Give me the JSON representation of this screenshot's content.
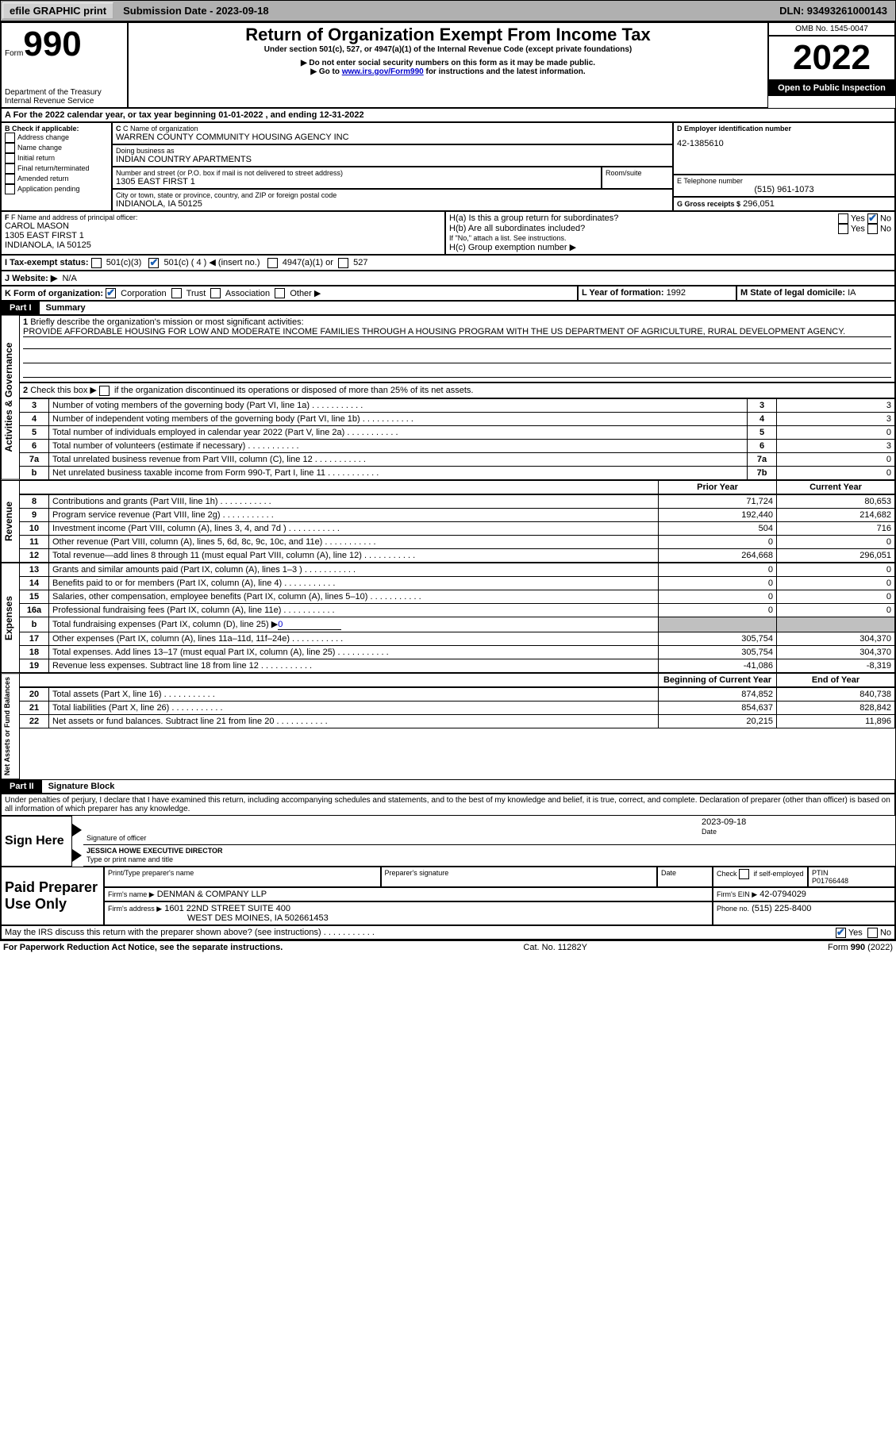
{
  "topbar": {
    "efile": "efile GRAPHIC print",
    "submission": "Submission Date - 2023-09-18",
    "dln": "DLN: 93493261000143"
  },
  "header": {
    "form_word": "Form",
    "form_num": "990",
    "dept": "Department of the Treasury",
    "irs": "Internal Revenue Service",
    "title": "Return of Organization Exempt From Income Tax",
    "subtitle": "Under section 501(c), 527, or 4947(a)(1) of the Internal Revenue Code (except private foundations)",
    "note1": "▶ Do not enter social security numbers on this form as it may be made public.",
    "note2_pre": "▶ Go to ",
    "note2_link": "www.irs.gov/Form990",
    "note2_post": " for instructions and the latest information.",
    "omb": "OMB No. 1545-0047",
    "year": "2022",
    "open": "Open to Public Inspection"
  },
  "sectionA": {
    "a_line": "A For the 2022 calendar year, or tax year beginning 01-01-2022    , and ending 12-31-2022",
    "b_label": "B Check if applicable:",
    "b_items": [
      "Address change",
      "Name change",
      "Initial return",
      "Final return/terminated",
      "Amended return",
      "Application pending"
    ],
    "c_label": "C Name of organization",
    "c_name": "WARREN COUNTY COMMUNITY HOUSING AGENCY INC",
    "dba_label": "Doing business as",
    "dba": "INDIAN COUNTRY APARTMENTS",
    "street_label": "Number and street (or P.O. box if mail is not delivered to street address)",
    "room_label": "Room/suite",
    "street": "1305 EAST FIRST 1",
    "city_label": "City or town, state or province, country, and ZIP or foreign postal code",
    "city": "INDIANOLA, IA  50125",
    "d_label": "D Employer identification number",
    "d_val": "42-1385610",
    "e_label": "E Telephone number",
    "e_val": "(515) 961-1073",
    "g_label": "G Gross receipts $",
    "g_val": "296,051",
    "f_label": "F  Name and address of principal officer:",
    "f_name": "CAROL MASON",
    "f_addr1": "1305 EAST FIRST 1",
    "f_addr2": "INDIANOLA, IA  50125",
    "ha_label": "H(a)  Is this a group return for subordinates?",
    "hb_label": "H(b)  Are all subordinates included?",
    "hb_note": "If \"No,\" attach a list. See instructions.",
    "hc_label": "H(c)  Group exemption number ▶",
    "yes": "Yes",
    "no": "No",
    "i_label": "I  Tax-exempt status:",
    "i_501c3": "501(c)(3)",
    "i_501c": "501(c) ( 4 ) ◀ (insert no.)",
    "i_4947": "4947(a)(1) or",
    "i_527": "527",
    "j_label": "J  Website: ▶",
    "j_val": "N/A",
    "k_label": "K Form of organization:",
    "k_corp": "Corporation",
    "k_trust": "Trust",
    "k_assoc": "Association",
    "k_other": "Other ▶",
    "l_label": "L Year of formation: ",
    "l_val": "1992",
    "m_label": "M State of legal domicile: ",
    "m_val": "IA"
  },
  "part1": {
    "label": "Part I",
    "title": "Summary",
    "side_gov": "Activities & Governance",
    "side_rev": "Revenue",
    "side_exp": "Expenses",
    "side_net": "Net Assets or Fund Balances",
    "line1_label": "Briefly describe the organization's mission or most significant activities:",
    "line1_text": "PROVIDE AFFORDABLE HOUSING FOR LOW AND MODERATE INCOME FAMILIES THROUGH A HOUSING PROGRAM WITH THE US DEPARTMENT OF AGRICULTURE, RURAL DEVELOPMENT AGENCY.",
    "line2": "Check this box ▶        if the organization discontinued its operations or disposed of more than 25% of its net assets.",
    "rows_gov": [
      {
        "n": "3",
        "d": "Number of voting members of the governing body (Part VI, line 1a)",
        "b": "3",
        "v": "3"
      },
      {
        "n": "4",
        "d": "Number of independent voting members of the governing body (Part VI, line 1b)",
        "b": "4",
        "v": "3"
      },
      {
        "n": "5",
        "d": "Total number of individuals employed in calendar year 2022 (Part V, line 2a)",
        "b": "5",
        "v": "0"
      },
      {
        "n": "6",
        "d": "Total number of volunteers (estimate if necessary)",
        "b": "6",
        "v": "3"
      },
      {
        "n": "7a",
        "d": "Total unrelated business revenue from Part VIII, column (C), line 12",
        "b": "7a",
        "v": "0"
      },
      {
        "n": "b",
        "d": "Net unrelated business taxable income from Form 990-T, Part I, line 11",
        "b": "7b",
        "v": "0"
      }
    ],
    "col_prior": "Prior Year",
    "col_current": "Current Year",
    "rows_rev": [
      {
        "n": "8",
        "d": "Contributions and grants (Part VIII, line 1h)",
        "p": "71,724",
        "c": "80,653"
      },
      {
        "n": "9",
        "d": "Program service revenue (Part VIII, line 2g)",
        "p": "192,440",
        "c": "214,682"
      },
      {
        "n": "10",
        "d": "Investment income (Part VIII, column (A), lines 3, 4, and 7d )",
        "p": "504",
        "c": "716"
      },
      {
        "n": "11",
        "d": "Other revenue (Part VIII, column (A), lines 5, 6d, 8c, 9c, 10c, and 11e)",
        "p": "0",
        "c": "0"
      },
      {
        "n": "12",
        "d": "Total revenue—add lines 8 through 11 (must equal Part VIII, column (A), line 12)",
        "p": "264,668",
        "c": "296,051"
      }
    ],
    "rows_exp": [
      {
        "n": "13",
        "d": "Grants and similar amounts paid (Part IX, column (A), lines 1–3 )",
        "p": "0",
        "c": "0"
      },
      {
        "n": "14",
        "d": "Benefits paid to or for members (Part IX, column (A), line 4)",
        "p": "0",
        "c": "0"
      },
      {
        "n": "15",
        "d": "Salaries, other compensation, employee benefits (Part IX, column (A), lines 5–10)",
        "p": "0",
        "c": "0"
      },
      {
        "n": "16a",
        "d": "Professional fundraising fees (Part IX, column (A), line 11e)",
        "p": "0",
        "c": "0"
      },
      {
        "n": "b",
        "d": "Total fundraising expenses (Part IX, column (D), line 25) ▶",
        "p": "SHADE",
        "c": "SHADE",
        "extra": "0"
      },
      {
        "n": "17",
        "d": "Other expenses (Part IX, column (A), lines 11a–11d, 11f–24e)",
        "p": "305,754",
        "c": "304,370"
      },
      {
        "n": "18",
        "d": "Total expenses. Add lines 13–17 (must equal Part IX, column (A), line 25)",
        "p": "305,754",
        "c": "304,370"
      },
      {
        "n": "19",
        "d": "Revenue less expenses. Subtract line 18 from line 12",
        "p": "-41,086",
        "c": "-8,319"
      }
    ],
    "col_begin": "Beginning of Current Year",
    "col_end": "End of Year",
    "rows_net": [
      {
        "n": "20",
        "d": "Total assets (Part X, line 16)",
        "p": "874,852",
        "c": "840,738"
      },
      {
        "n": "21",
        "d": "Total liabilities (Part X, line 26)",
        "p": "854,637",
        "c": "828,842"
      },
      {
        "n": "22",
        "d": "Net assets or fund balances. Subtract line 21 from line 20",
        "p": "20,215",
        "c": "11,896"
      }
    ]
  },
  "part2": {
    "label": "Part II",
    "title": "Signature Block",
    "decl": "Under penalties of perjury, I declare that I have examined this return, including accompanying schedules and statements, and to the best of my knowledge and belief, it is true, correct, and complete. Declaration of preparer (other than officer) is based on all information of which preparer has any knowledge.",
    "sign_here": "Sign Here",
    "sig_of_officer": "Signature of officer",
    "date_label": "Date",
    "sig_date": "2023-09-18",
    "officer_name": "JESSICA HOWE  EXECUTIVE DIRECTOR",
    "type_name": "Type or print name and title",
    "paid": "Paid Preparer Use Only",
    "print_name_label": "Print/Type preparer's name",
    "prep_sig_label": "Preparer's signature",
    "check_if": "Check         if self-employed",
    "ptin_label": "PTIN",
    "ptin": "P01766448",
    "firm_name_label": "Firm's name    ▶",
    "firm_name": "DENMAN & COMPANY LLP",
    "firm_ein_label": "Firm's EIN ▶",
    "firm_ein": "42-0794029",
    "firm_addr_label": "Firm's address ▶",
    "firm_addr1": "1601 22ND STREET SUITE 400",
    "firm_addr2": "WEST DES MOINES, IA  502661453",
    "phone_label": "Phone no.",
    "phone": "(515) 225-8400",
    "may_irs": "May the IRS discuss this return with the preparer shown above? (see instructions)"
  },
  "footer": {
    "pra": "For Paperwork Reduction Act Notice, see the separate instructions.",
    "cat": "Cat. No. 11282Y",
    "form": "Form 990 (2022)"
  }
}
